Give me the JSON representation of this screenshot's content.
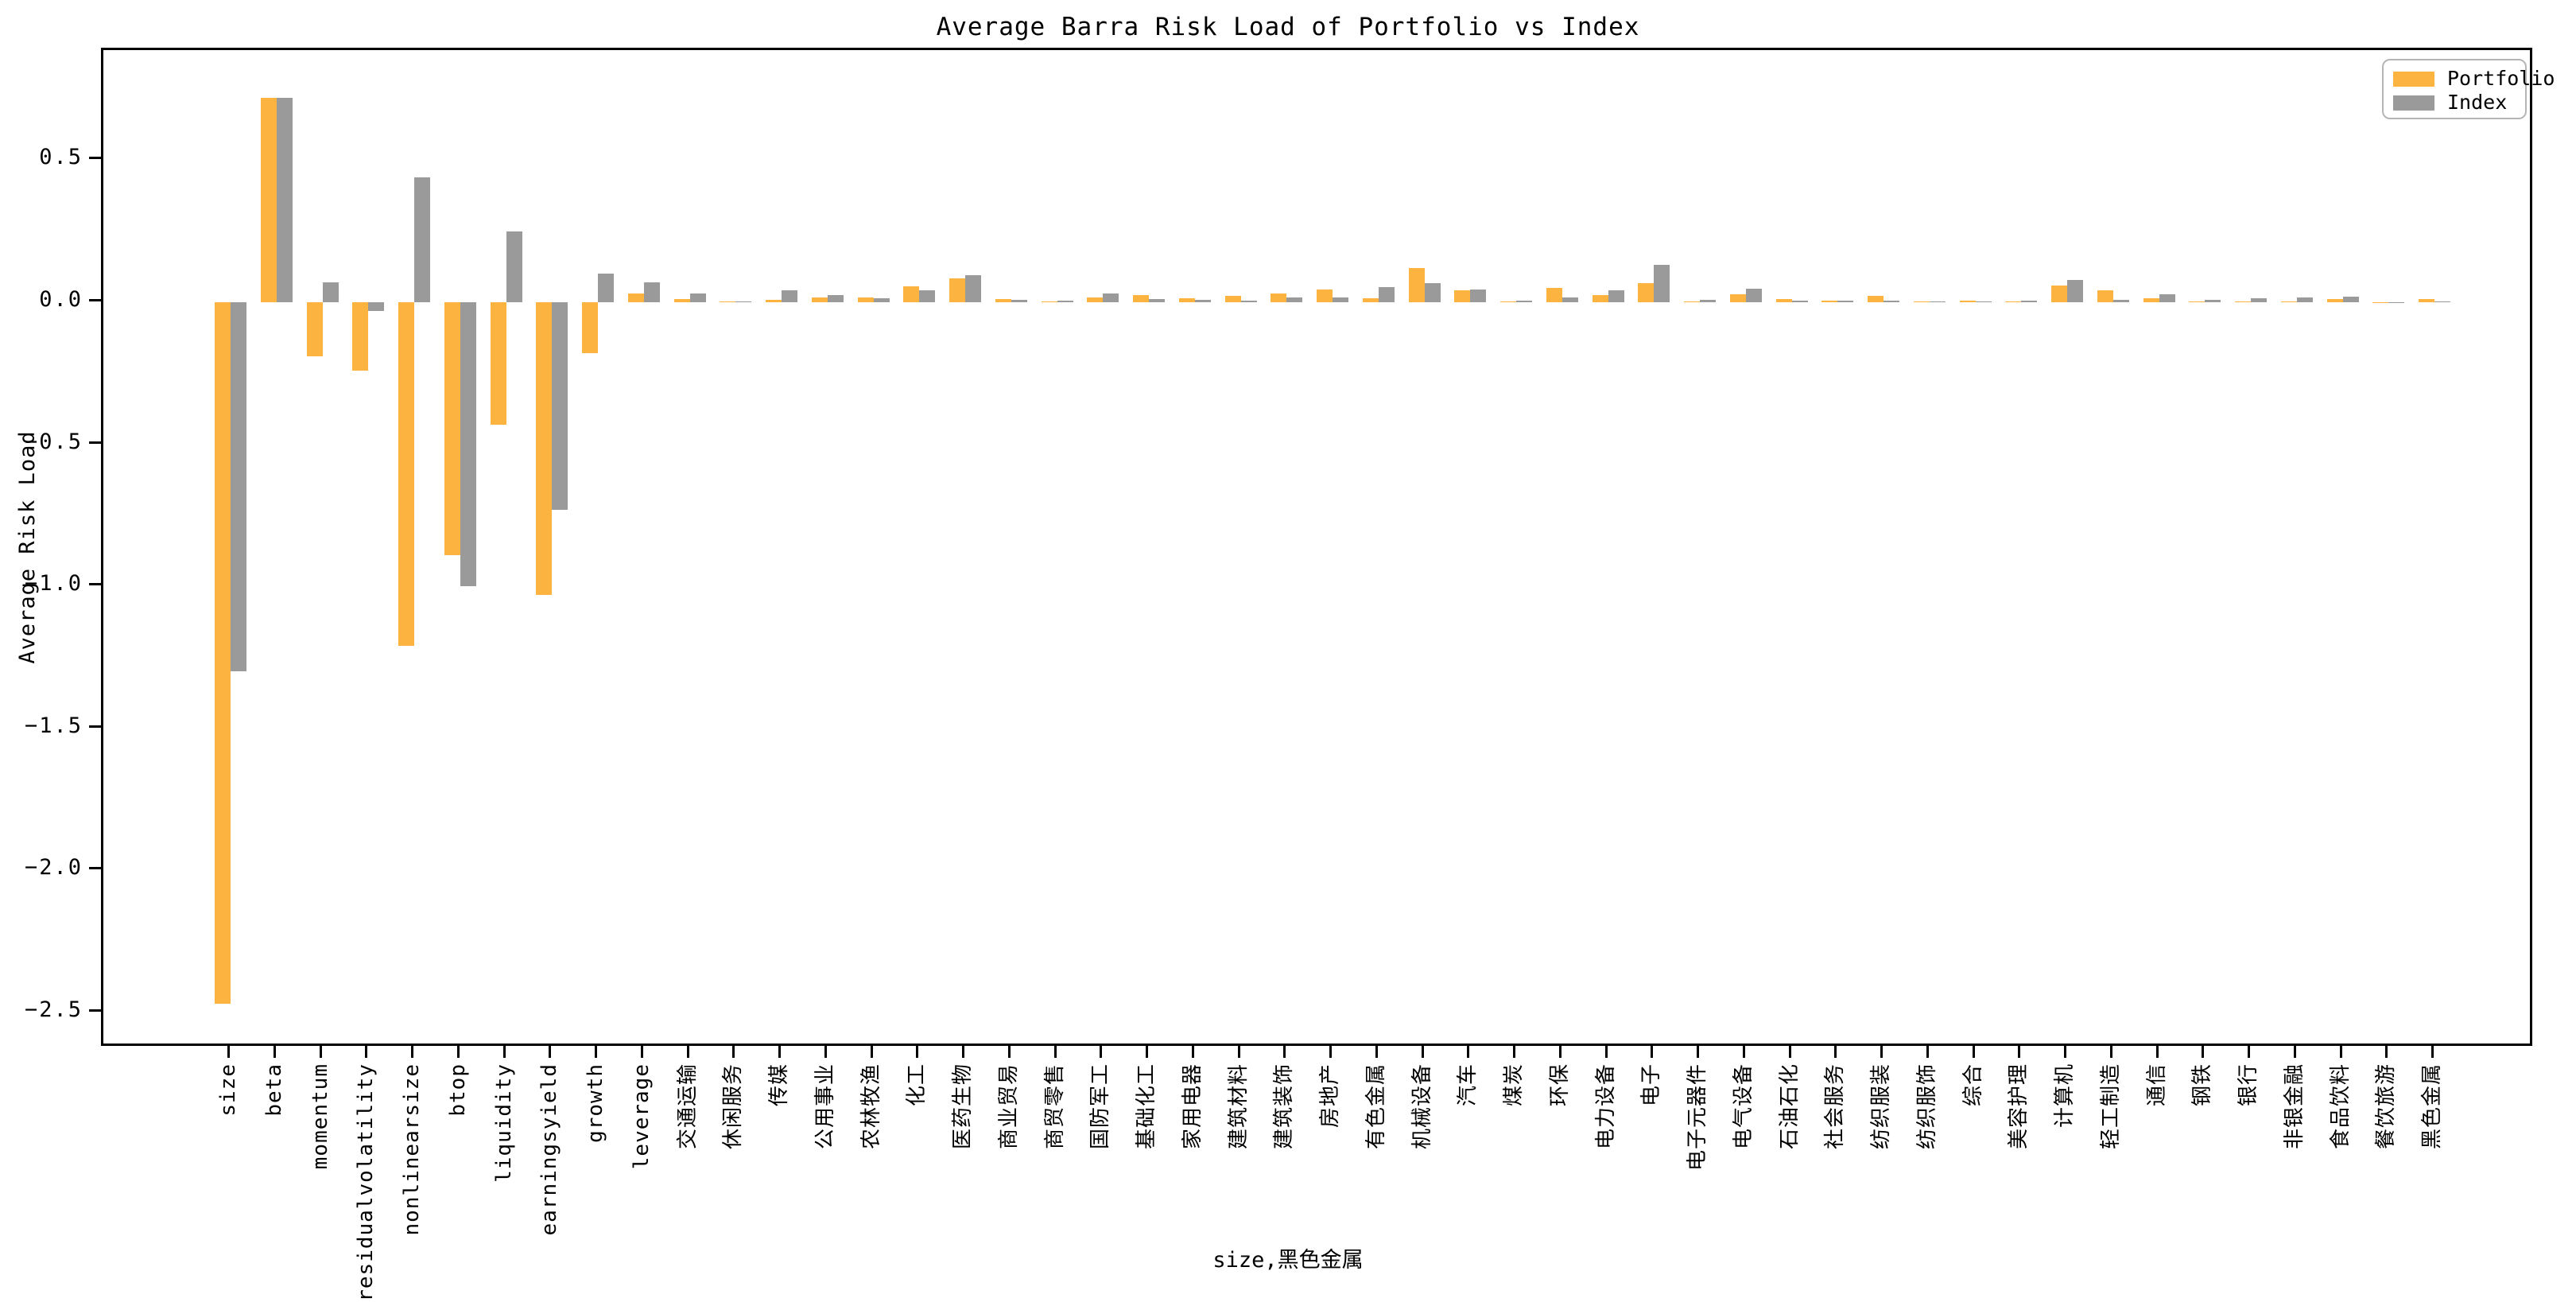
{
  "title": "Average Barra Risk Load of Portfolio vs Index",
  "axes": {
    "ylabel": "Average Risk Load",
    "xlabel": "size,黑色金属",
    "ytick_labels": [
      "0.5",
      "0.0",
      "−0.5",
      "−1.0",
      "−1.5",
      "−2.0",
      "−2.5"
    ],
    "ytick_values": [
      0.5,
      0.0,
      -0.5,
      -1.0,
      -1.5,
      -2.0,
      -2.5
    ]
  },
  "legend": {
    "portfolio_label": "Portfolio",
    "index_label": "Index"
  },
  "colors": {
    "portfolio": "#FCB340",
    "index": "#9A9A9A",
    "axis": "#000000"
  },
  "chart_data": {
    "type": "bar",
    "title": "Average Barra Risk Load of Portfolio vs Index",
    "xlabel": "size,黑色金属",
    "ylabel": "Average Risk Load",
    "ylim": [
      -2.63,
      0.89
    ],
    "grid": false,
    "legend_position": "upper right",
    "categories": [
      "size",
      "beta",
      "momentum",
      "residualvolatility",
      "nonlinearsize",
      "btop",
      "liquidity",
      "earningsyield",
      "growth",
      "leverage",
      "交通运输",
      "休闲服务",
      "传媒",
      "公用事业",
      "农林牧渔",
      "化工",
      "医药生物",
      "商业贸易",
      "商贸零售",
      "国防军工",
      "基础化工",
      "家用电器",
      "建筑材料",
      "建筑装饰",
      "房地产",
      "有色金属",
      "机械设备",
      "汽车",
      "煤炭",
      "环保",
      "电力设备",
      "电子",
      "电子元器件",
      "电气设备",
      "石油石化",
      "社会服务",
      "纺织服装",
      "纺织服饰",
      "综合",
      "美容护理",
      "计算机",
      "轻工制造",
      "通信",
      "钢铁",
      "银行",
      "非银金融",
      "食品饮料",
      "餐饮旅游",
      "黑色金属"
    ],
    "series": [
      {
        "name": "Portfolio",
        "color": "#FCB340",
        "values": [
          -2.47,
          0.72,
          -0.19,
          -0.24,
          -1.21,
          -0.89,
          -0.43,
          -1.03,
          -0.18,
          0.03,
          0.012,
          0.002,
          0.009,
          0.018,
          0.017,
          0.057,
          0.084,
          0.011,
          0.002,
          0.018,
          0.024,
          0.015,
          0.022,
          0.03,
          0.046,
          0.014,
          0.12,
          0.042,
          0.003,
          0.049,
          0.026,
          0.067,
          0.002,
          0.028,
          0.011,
          0.006,
          0.022,
          0.003,
          0.006,
          0.004,
          0.059,
          0.041,
          0.014,
          0.003,
          0.002,
          0.002,
          0.01,
          0.001,
          0.01
        ]
      },
      {
        "name": "Index",
        "color": "#9A9A9A",
        "values": [
          -1.3,
          0.72,
          0.07,
          -0.03,
          0.44,
          -1.0,
          0.25,
          -0.73,
          0.1,
          0.07,
          0.03,
          0.002,
          0.041,
          0.025,
          0.013,
          0.043,
          0.096,
          0.009,
          0.005,
          0.032,
          0.012,
          0.008,
          0.006,
          0.017,
          0.018,
          0.053,
          0.067,
          0.044,
          0.006,
          0.018,
          0.043,
          0.132,
          0.008,
          0.048,
          0.005,
          0.005,
          0.006,
          0.004,
          0.004,
          0.006,
          0.079,
          0.008,
          0.029,
          0.007,
          0.015,
          0.018,
          0.02,
          0.001,
          0.002
        ]
      }
    ]
  }
}
